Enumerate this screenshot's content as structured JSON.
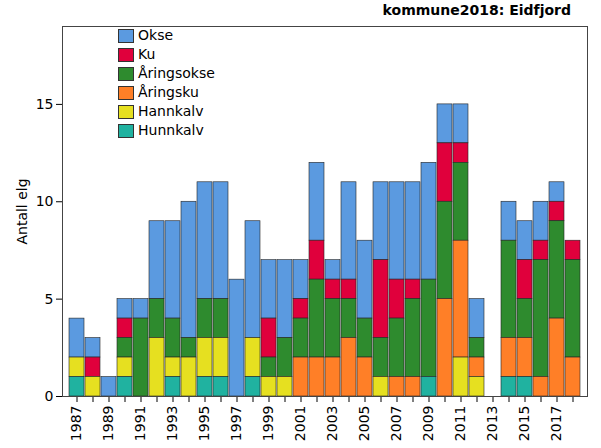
{
  "chart_data": {
    "type": "bar",
    "stacked": true,
    "title": "kommune2018: Eidfjord",
    "y_label": "Antall elg",
    "categories": [
      "1987",
      null,
      "1989",
      null,
      "1991",
      null,
      "1993",
      null,
      "1995",
      null,
      "1997",
      null,
      "1999",
      null,
      "2001",
      null,
      "2003",
      null,
      "2005",
      null,
      "2007",
      null,
      "2009",
      null,
      "2011",
      null,
      "2013",
      null,
      "2015",
      null,
      "2017",
      null
    ],
    "series": [
      {
        "name": "Okse",
        "color": "#5b9ae0",
        "values": [
          2,
          1,
          1,
          1,
          1,
          4,
          5,
          7,
          6,
          6,
          6,
          6,
          3,
          4,
          2,
          4,
          1,
          5,
          4,
          4,
          5,
          5,
          6,
          2,
          2,
          2,
          0,
          2,
          2,
          2,
          1,
          0
        ]
      },
      {
        "name": "Ku",
        "color": "#e0003c",
        "values": [
          0,
          1,
          0,
          1,
          0,
          0,
          0,
          0,
          0,
          0,
          0,
          0,
          2,
          0,
          1,
          2,
          1,
          1,
          0,
          4,
          2,
          1,
          0,
          3,
          1,
          0,
          0,
          0,
          2,
          1,
          1,
          1
        ]
      },
      {
        "name": "Åringsokse",
        "color": "#2e8b2e",
        "values": [
          0,
          0,
          0,
          1,
          4,
          2,
          2,
          1,
          2,
          2,
          0,
          0,
          1,
          2,
          2,
          4,
          3,
          2,
          2,
          2,
          3,
          4,
          5,
          5,
          4,
          1,
          0,
          5,
          2,
          6,
          5,
          5
        ]
      },
      {
        "name": "Åringsku",
        "color": "#ff7f27",
        "values": [
          0,
          0,
          0,
          0,
          0,
          0,
          0,
          0,
          0,
          0,
          0,
          0,
          0,
          0,
          2,
          2,
          2,
          3,
          2,
          0,
          1,
          1,
          0,
          5,
          6,
          1,
          0,
          2,
          2,
          1,
          4,
          2
        ]
      },
      {
        "name": "Hannkalv",
        "color": "#e6e020",
        "values": [
          1,
          1,
          0,
          1,
          0,
          3,
          1,
          2,
          2,
          2,
          0,
          2,
          1,
          1,
          0,
          0,
          0,
          0,
          0,
          1,
          0,
          0,
          0,
          0,
          2,
          1,
          0,
          0,
          0,
          0,
          0,
          0
        ]
      },
      {
        "name": "Hunnkalv",
        "color": "#20b2a0",
        "values": [
          1,
          0,
          0,
          1,
          0,
          0,
          1,
          0,
          1,
          1,
          0,
          1,
          0,
          0,
          0,
          0,
          0,
          0,
          0,
          0,
          0,
          0,
          1,
          0,
          0,
          0,
          0,
          1,
          1,
          0,
          0,
          0
        ]
      }
    ],
    "ylim": [
      0,
      19
    ],
    "yticks": [
      0,
      5,
      10,
      15
    ],
    "legend": "top-left"
  }
}
